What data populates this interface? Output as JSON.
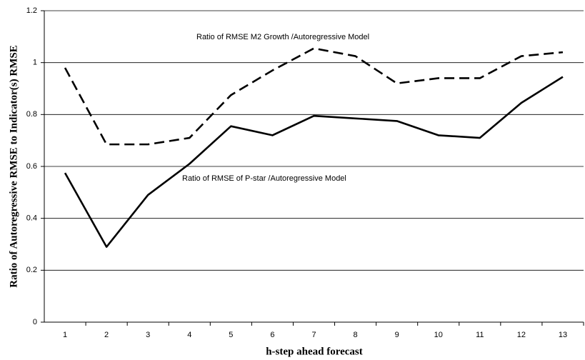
{
  "chart_data": {
    "type": "line",
    "x_label": "h-step ahead forecast",
    "y_label": "Ratio of Autoregressive RMSE to Indicator(s) RMSE",
    "categories": [
      "1",
      "2",
      "3",
      "4",
      "5",
      "6",
      "7",
      "8",
      "9",
      "10",
      "11",
      "12",
      "13"
    ],
    "series": [
      {
        "name": "Ratio of RMSE M2 Growth /Autoregressive Model",
        "color": "#000000",
        "dashed": true,
        "values": [
          0.98,
          0.685,
          0.685,
          0.71,
          0.875,
          0.97,
          1.055,
          1.025,
          0.92,
          0.94,
          0.94,
          1.025,
          1.04
        ]
      },
      {
        "name": "Ratio of RMSE of P-star /Autoregressive Model",
        "color": "#000000",
        "dashed": false,
        "values": [
          0.575,
          0.29,
          0.49,
          0.61,
          0.755,
          0.72,
          0.795,
          0.785,
          0.775,
          0.72,
          0.71,
          0.845,
          0.945
        ]
      }
    ],
    "ylim": [
      0,
      1.2
    ],
    "yticks": [
      0,
      0.2,
      0.4,
      0.6,
      0.8,
      1,
      1.2
    ],
    "grid": true
  }
}
